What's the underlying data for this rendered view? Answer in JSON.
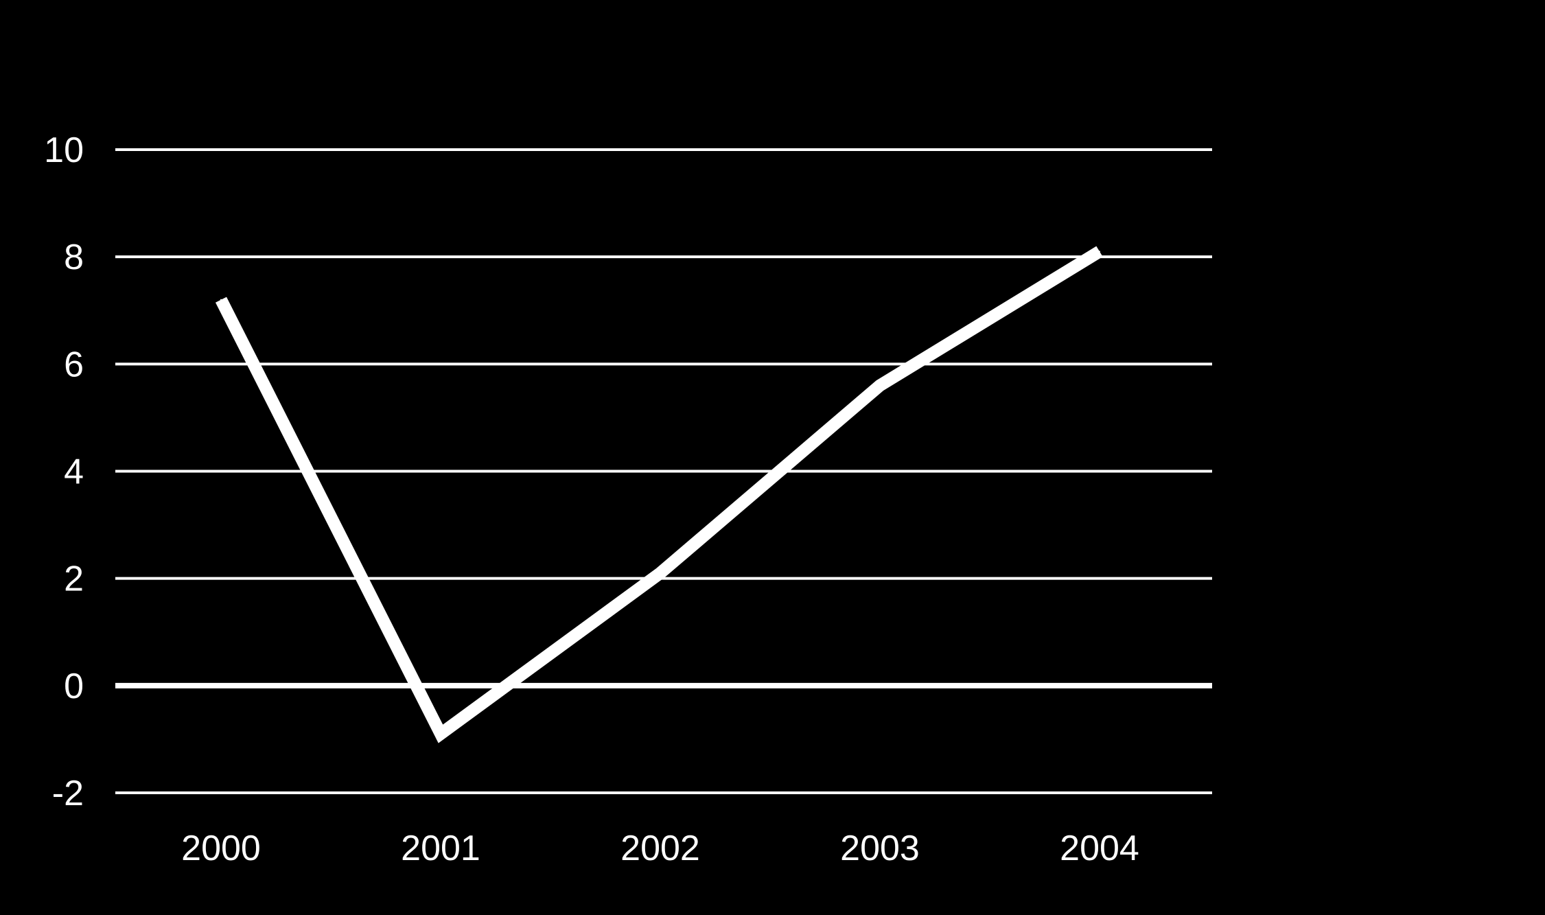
{
  "chart_data": {
    "type": "line",
    "title": "",
    "xlabel": "",
    "ylabel": "",
    "x": [
      "2000",
      "2001",
      "2002",
      "2003",
      "2004"
    ],
    "series": [
      {
        "values": [
          7.2,
          -0.9,
          2.1,
          5.6,
          8.1
        ]
      }
    ],
    "ylim": [
      -2,
      10
    ],
    "yticks": [
      10,
      8,
      6,
      4,
      2,
      0,
      -2
    ],
    "grid": true,
    "legend": "none",
    "colors": {
      "background": "#000000",
      "line": "#ffffff",
      "grid": "#ffffff",
      "text": "#ffffff"
    }
  }
}
